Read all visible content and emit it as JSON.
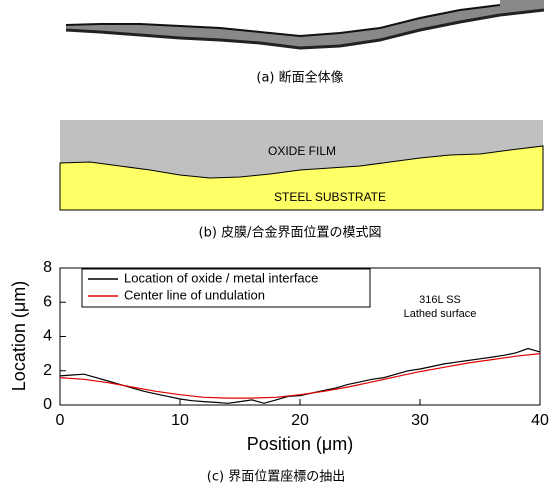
{
  "panels": {
    "a": {
      "caption": "(a) 断面全体像"
    },
    "b": {
      "caption": "(b) 皮膜/合金界面位置の模式図",
      "upper_label": "OXIDE FILM",
      "lower_label": "STEEL SUBSTRATE"
    },
    "c": {
      "caption": "(c) 界面位置座標の抽出"
    }
  },
  "chart_data": {
    "type": "line",
    "x_label": "Position (μm)",
    "y_label": "Location (μm)",
    "annotations": [
      "316L SS",
      "Lathed surface"
    ],
    "xlim": [
      0,
      40
    ],
    "ylim": [
      0,
      8
    ],
    "xticks": [
      0,
      10,
      20,
      30,
      40
    ],
    "yticks": [
      0,
      2,
      4,
      6,
      8
    ],
    "legend": "upper left",
    "series": [
      {
        "name": "Location of oxide / metal interface",
        "color": "#000000",
        "x": [
          0,
          1,
          2,
          3,
          4,
          5,
          6,
          7,
          8,
          9,
          10,
          11,
          12,
          13,
          14,
          15,
          16,
          17,
          18,
          19,
          20,
          21,
          22,
          23,
          24,
          25,
          26,
          27,
          28,
          29,
          30,
          31,
          32,
          33,
          34,
          35,
          36,
          37,
          38,
          39,
          40
        ],
        "values": [
          1.7,
          1.75,
          1.8,
          1.6,
          1.4,
          1.2,
          1.0,
          0.8,
          0.65,
          0.5,
          0.35,
          0.25,
          0.2,
          0.15,
          0.1,
          0.2,
          0.3,
          0.1,
          0.3,
          0.5,
          0.55,
          0.7,
          0.85,
          1.0,
          1.2,
          1.35,
          1.5,
          1.6,
          1.8,
          2.0,
          2.1,
          2.25,
          2.4,
          2.5,
          2.6,
          2.7,
          2.8,
          2.9,
          3.05,
          3.3,
          3.1
        ]
      },
      {
        "name": "Center line of undulation",
        "color": "#e00000",
        "x": [
          0,
          2,
          4,
          6,
          8,
          10,
          12,
          14,
          16,
          18,
          20,
          22,
          24,
          26,
          28,
          30,
          32,
          34,
          36,
          38,
          40
        ],
        "values": [
          1.6,
          1.5,
          1.3,
          1.05,
          0.8,
          0.6,
          0.45,
          0.4,
          0.4,
          0.45,
          0.6,
          0.8,
          1.05,
          1.35,
          1.65,
          1.95,
          2.2,
          2.45,
          2.65,
          2.85,
          3.0
        ]
      }
    ]
  }
}
